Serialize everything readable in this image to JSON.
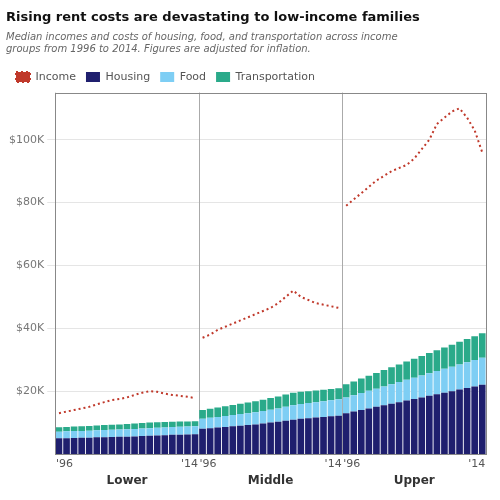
{
  "chart_data": {
    "type": "bar",
    "stacked": true,
    "title": "Rising rent costs are devastating to low-income families",
    "subtitle": "Median incomes and costs of housing, food, and transportation across income\ngroups from 1996 to 2014. Figures are adjusted for inflation.",
    "categories": [
      "'96",
      null,
      null,
      null,
      null,
      null,
      null,
      null,
      null,
      null,
      null,
      null,
      null,
      null,
      null,
      null,
      null,
      null,
      "'14",
      "'96",
      null,
      null,
      null,
      null,
      null,
      null,
      null,
      null,
      null,
      null,
      null,
      null,
      null,
      null,
      null,
      null,
      null,
      "'14",
      "'96",
      null,
      null,
      null,
      null,
      null,
      null,
      null,
      null,
      null,
      null,
      null,
      null,
      null,
      null,
      null,
      null,
      null,
      "'14"
    ],
    "annotations": [
      "Lower",
      "Middle",
      "Upper"
    ],
    "series": [
      {
        "name": "Housing",
        "color": "#1f1f6e",
        "values": [
          5000,
          5050,
          5100,
          5150,
          5200,
          5300,
          5350,
          5400,
          5450,
          5500,
          5600,
          5700,
          5800,
          5900,
          6000,
          6100,
          6150,
          6200,
          6250,
          8000,
          8200,
          8400,
          8600,
          8800,
          9000,
          9200,
          9400,
          9700,
          10000,
          10300,
          10600,
          10900,
          11200,
          11400,
          11600,
          11800,
          12000,
          12200,
          13000,
          13500,
          14000,
          14500,
          15000,
          15500,
          16000,
          16500,
          17000,
          17500,
          18000,
          18500,
          19000,
          19500,
          20000,
          20500,
          21000,
          21500,
          22000
        ]
      },
      {
        "name": "Food",
        "color": "#7ecef4",
        "values": [
          2100,
          2150,
          2180,
          2200,
          2230,
          2260,
          2290,
          2310,
          2330,
          2360,
          2380,
          2410,
          2430,
          2450,
          2470,
          2490,
          2510,
          2530,
          2550,
          3200,
          3300,
          3400,
          3500,
          3600,
          3700,
          3800,
          3900,
          4000,
          4100,
          4200,
          4400,
          4600,
          4700,
          4800,
          4900,
          5000,
          5100,
          5200,
          5000,
          5200,
          5400,
          5600,
          5800,
          6000,
          6200,
          6400,
          6600,
          6800,
          7000,
          7200,
          7400,
          7600,
          7800,
          8000,
          8200,
          8400,
          8600
        ]
      },
      {
        "name": "Transportation",
        "color": "#2aaa8a",
        "values": [
          1400,
          1430,
          1450,
          1480,
          1500,
          1530,
          1570,
          1600,
          1640,
          1680,
          1720,
          1760,
          1800,
          1750,
          1700,
          1680,
          1660,
          1650,
          1640,
          2800,
          2900,
          3000,
          3100,
          3200,
          3300,
          3400,
          3500,
          3600,
          3700,
          3800,
          3900,
          4000,
          3900,
          3800,
          3700,
          3650,
          3600,
          3550,
          4200,
          4400,
          4600,
          4800,
          5000,
          5200,
          5400,
          5600,
          5800,
          6000,
          6200,
          6400,
          6600,
          6800,
          7000,
          7200,
          7400,
          7600,
          7800
        ]
      },
      {
        "name": "Income",
        "type": "line",
        "line_style": "dotted",
        "color": "#c0392b",
        "values": [
          13000,
          13500,
          14000,
          14500,
          15000,
          15800,
          16500,
          17200,
          17500,
          18000,
          18800,
          19500,
          20000,
          19800,
          19200,
          18800,
          18500,
          18200,
          17800,
          37000,
          38000,
          39500,
          40500,
          41500,
          42500,
          43500,
          44500,
          45500,
          46500,
          48000,
          50000,
          52000,
          50000,
          49000,
          48000,
          47500,
          47000,
          46500,
          79000,
          81000,
          83000,
          85000,
          87000,
          88500,
          90000,
          91000,
          92000,
          94000,
          97000,
          100000,
          105000,
          107000,
          109000,
          110000,
          107000,
          103000,
          96000
        ]
      }
    ],
    "ylim": [
      0,
      115000
    ],
    "yticks": [
      {
        "value": 20000,
        "label": "$20K"
      },
      {
        "value": 40000,
        "label": "$40K"
      },
      {
        "value": 60000,
        "label": "$60K"
      },
      {
        "value": 80000,
        "label": "$80K"
      },
      {
        "value": 100000,
        "label": "$100K"
      }
    ],
    "grid": true,
    "legend": "upper left"
  }
}
